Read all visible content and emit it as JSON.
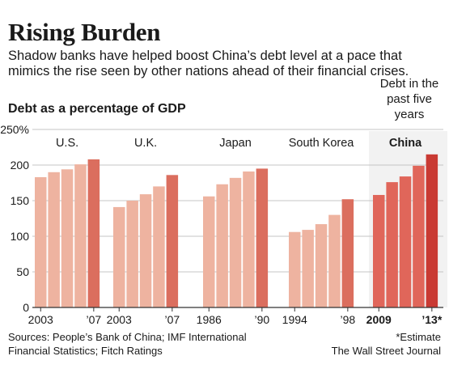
{
  "header": {
    "title": "Rising Burden",
    "subtitle": "Shadow banks have helped boost China’s debt level at a pace that mimics the rise seen by other nations ahead of their financial crises."
  },
  "note": "Debt in the past five years",
  "source": "Sources: People’s Bank of China; IMF International Financial Statistics; Fitch Ratings",
  "footnote": "*Estimate",
  "credit": "The Wall Street Journal",
  "colors": {
    "bar_light": "#eeb3a0",
    "bar_dark": "#db6e5e",
    "china_light": "#e0665a",
    "china_dark": "#c93a33",
    "highlight_bg": "#f2f2f2",
    "grid": "#c4c4c4",
    "axis": "#333333"
  },
  "chart_data": {
    "type": "bar",
    "ylabel": "Debt as a percentage of GDP",
    "ylim": [
      0,
      250
    ],
    "yticks": [
      0,
      50,
      100,
      150,
      200,
      250
    ],
    "ytick_labels": [
      "0",
      "50",
      "100",
      "150",
      "200",
      "250%"
    ],
    "grid": true,
    "groups": [
      {
        "name": "U.S.",
        "years": [
          "2003",
          "2004",
          "2005",
          "2006",
          "2007"
        ],
        "values": [
          183,
          190,
          194,
          201,
          208
        ],
        "tick_labels": [
          "2003",
          "’07"
        ]
      },
      {
        "name": "U.K.",
        "years": [
          "2003",
          "2004",
          "2005",
          "2006",
          "2007"
        ],
        "values": [
          141,
          150,
          159,
          170,
          186
        ],
        "tick_labels": [
          "2003",
          "’07"
        ]
      },
      {
        "name": "Japan",
        "years": [
          "1986",
          "1987",
          "1988",
          "1989",
          "1990"
        ],
        "values": [
          156,
          173,
          182,
          191,
          195
        ],
        "tick_labels": [
          "1986",
          "’90"
        ]
      },
      {
        "name": "South Korea",
        "years": [
          "1994",
          "1995",
          "1996",
          "1997",
          "1998"
        ],
        "values": [
          106,
          109,
          117,
          130,
          152
        ],
        "tick_labels": [
          "1994",
          "’98"
        ]
      },
      {
        "name": "China",
        "years": [
          "2009",
          "2010",
          "2011",
          "2012",
          "2013"
        ],
        "values": [
          158,
          176,
          184,
          199,
          215
        ],
        "tick_labels": [
          "2009",
          "’13*"
        ],
        "highlight": true
      }
    ]
  }
}
